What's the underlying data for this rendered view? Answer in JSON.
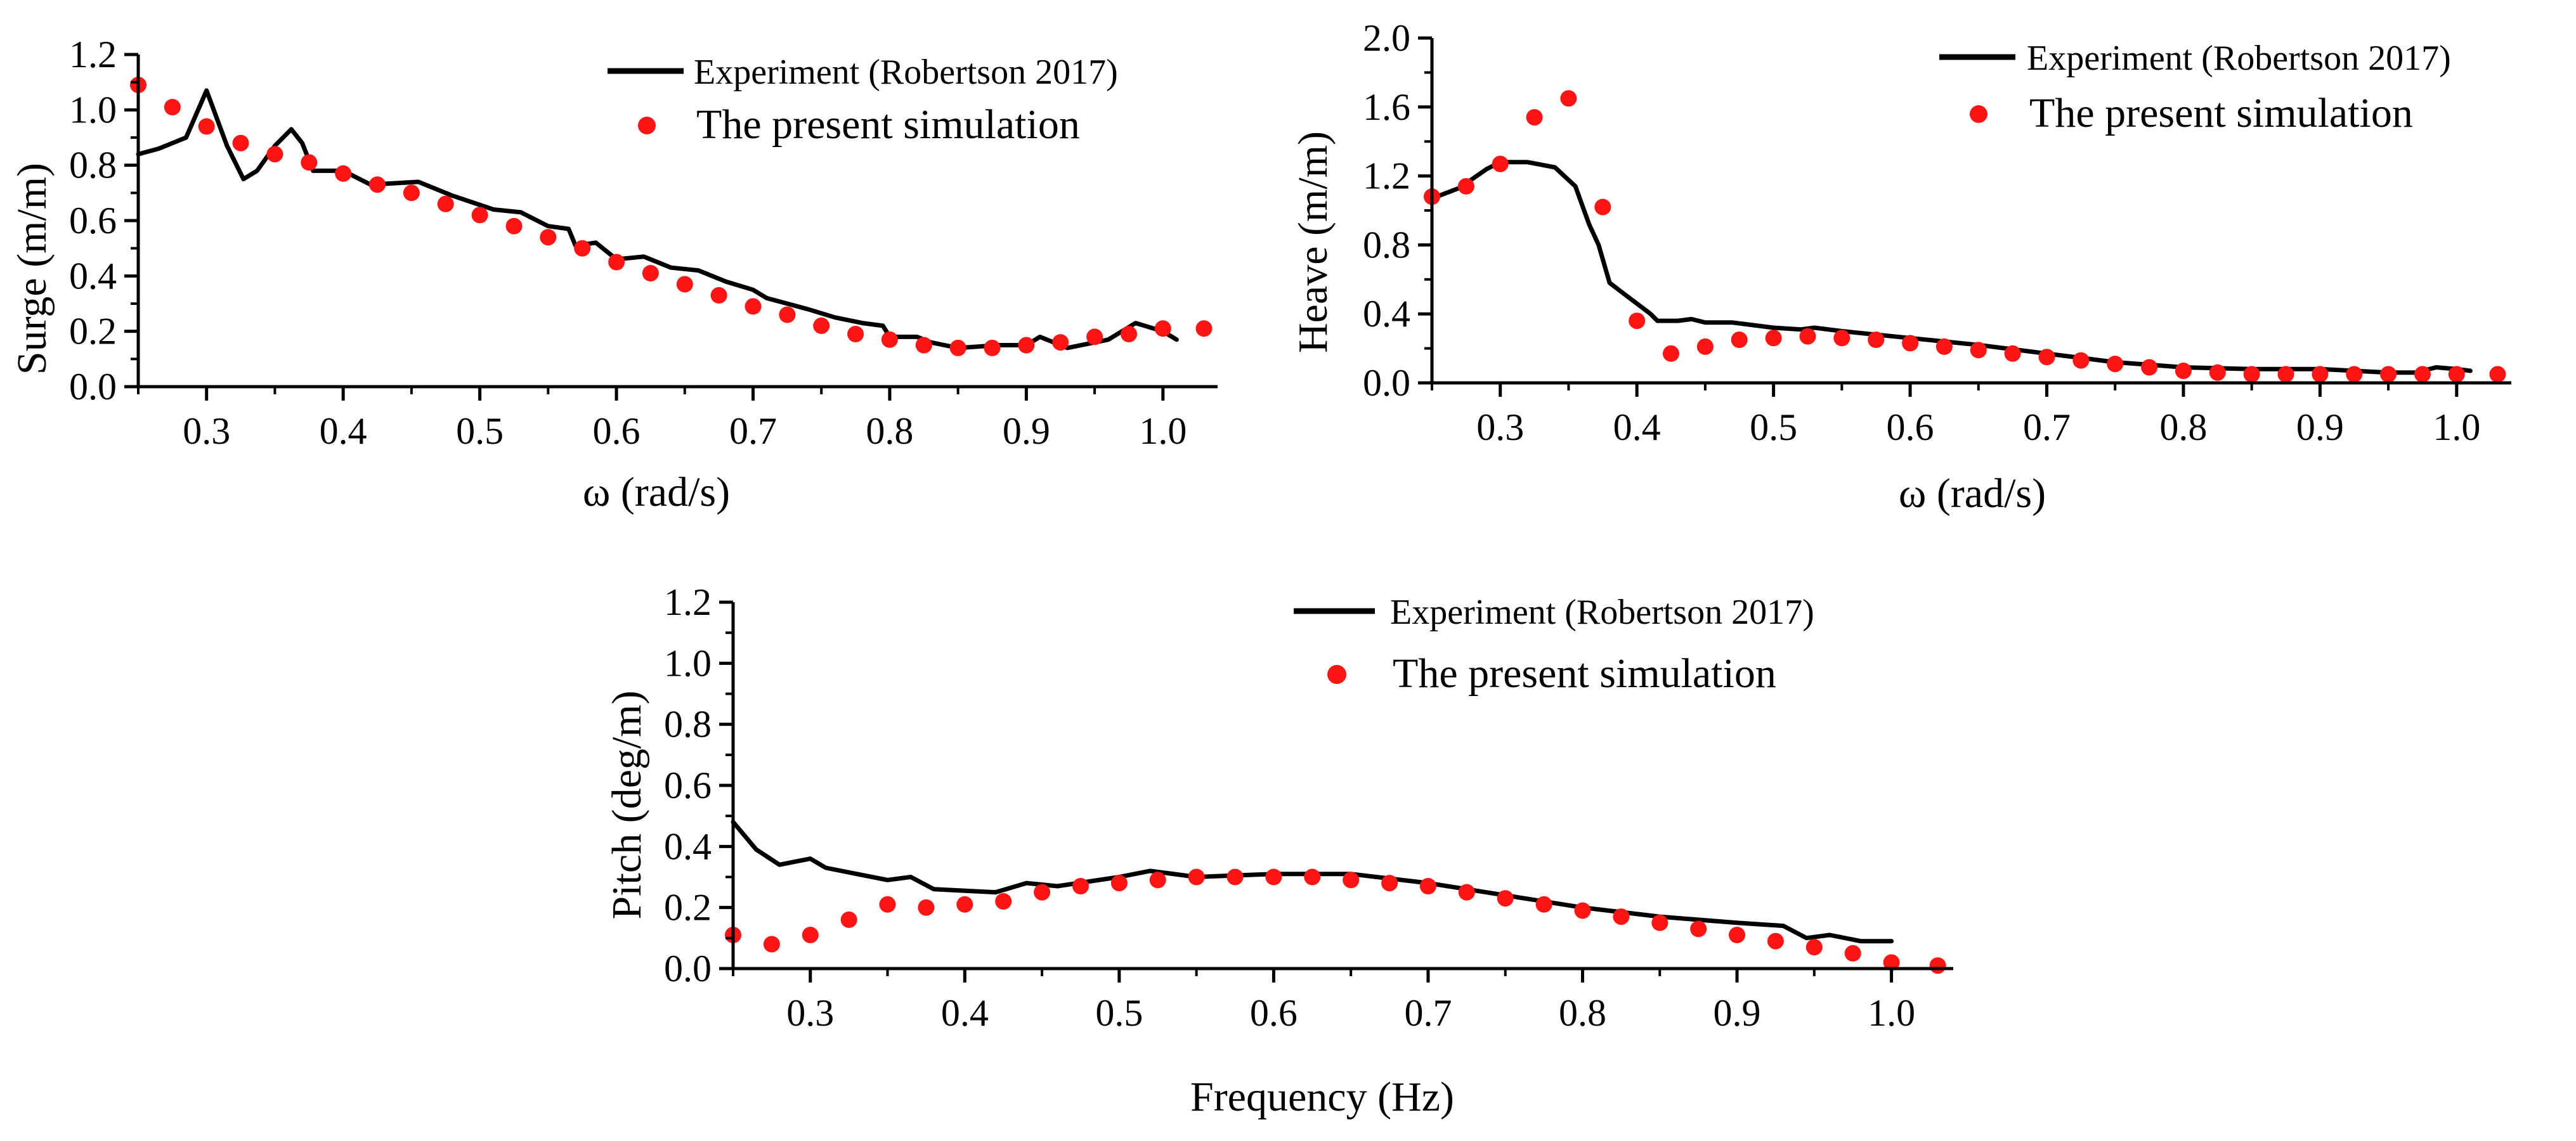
{
  "colors": {
    "experiment": "#000000",
    "simulation": "#ff1414",
    "axis": "#000000"
  },
  "chart_data": [
    {
      "type": "line",
      "panel": "surge",
      "xlabel": "ω (rad/s)",
      "ylabel": "Surge (m/m)",
      "xlim": [
        0.25,
        1.04
      ],
      "ylim": [
        0.0,
        1.2
      ],
      "xticks": [
        0.3,
        0.4,
        0.5,
        0.6,
        0.7,
        0.8,
        0.9,
        1.0
      ],
      "xtick_labels": [
        "0.3",
        "0.4",
        "0.5",
        "0.6",
        "0.7",
        "0.8",
        "0.9",
        "1.0"
      ],
      "yticks": [
        0.0,
        0.2,
        0.4,
        0.6,
        0.8,
        1.0,
        1.2
      ],
      "ytick_labels": [
        "0.0",
        "0.2",
        "0.4",
        "0.6",
        "0.8",
        "1.0",
        "1.2"
      ],
      "legend": [
        {
          "label": "Experiment (Robertson 2017)",
          "kind": "line"
        },
        {
          "label": "The present simulation",
          "kind": "marker"
        }
      ],
      "series": [
        {
          "name": "Experiment (Robertson 2017)",
          "kind": "line",
          "points": [
            [
              0.25,
              0.84
            ],
            [
              0.265,
              0.86
            ],
            [
              0.285,
              0.9
            ],
            [
              0.3,
              1.07
            ],
            [
              0.315,
              0.87
            ],
            [
              0.327,
              0.75
            ],
            [
              0.337,
              0.78
            ],
            [
              0.35,
              0.87
            ],
            [
              0.362,
              0.93
            ],
            [
              0.37,
              0.88
            ],
            [
              0.378,
              0.78
            ],
            [
              0.4,
              0.78
            ],
            [
              0.42,
              0.73
            ],
            [
              0.455,
              0.74
            ],
            [
              0.48,
              0.69
            ],
            [
              0.51,
              0.64
            ],
            [
              0.53,
              0.63
            ],
            [
              0.55,
              0.58
            ],
            [
              0.565,
              0.57
            ],
            [
              0.57,
              0.51
            ],
            [
              0.585,
              0.52
            ],
            [
              0.6,
              0.46
            ],
            [
              0.62,
              0.47
            ],
            [
              0.64,
              0.43
            ],
            [
              0.66,
              0.42
            ],
            [
              0.68,
              0.38
            ],
            [
              0.7,
              0.35
            ],
            [
              0.71,
              0.32
            ],
            [
              0.74,
              0.28
            ],
            [
              0.76,
              0.25
            ],
            [
              0.78,
              0.23
            ],
            [
              0.795,
              0.22
            ],
            [
              0.8,
              0.18
            ],
            [
              0.82,
              0.18
            ],
            [
              0.83,
              0.16
            ],
            [
              0.85,
              0.14
            ],
            [
              0.88,
              0.15
            ],
            [
              0.9,
              0.15
            ],
            [
              0.91,
              0.18
            ],
            [
              0.925,
              0.15
            ],
            [
              0.93,
              0.14
            ],
            [
              0.96,
              0.17
            ],
            [
              0.98,
              0.23
            ],
            [
              1.0,
              0.2
            ],
            [
              1.01,
              0.17
            ]
          ]
        },
        {
          "name": "The present simulation",
          "kind": "scatter",
          "points": [
            [
              0.25,
              1.09
            ],
            [
              0.275,
              1.01
            ],
            [
              0.3,
              0.94
            ],
            [
              0.325,
              0.88
            ],
            [
              0.35,
              0.84
            ],
            [
              0.375,
              0.81
            ],
            [
              0.4,
              0.77
            ],
            [
              0.425,
              0.73
            ],
            [
              0.45,
              0.7
            ],
            [
              0.475,
              0.66
            ],
            [
              0.5,
              0.62
            ],
            [
              0.525,
              0.58
            ],
            [
              0.55,
              0.54
            ],
            [
              0.575,
              0.5
            ],
            [
              0.6,
              0.45
            ],
            [
              0.625,
              0.41
            ],
            [
              0.65,
              0.37
            ],
            [
              0.675,
              0.33
            ],
            [
              0.7,
              0.29
            ],
            [
              0.725,
              0.26
            ],
            [
              0.75,
              0.22
            ],
            [
              0.775,
              0.19
            ],
            [
              0.8,
              0.17
            ],
            [
              0.825,
              0.15
            ],
            [
              0.85,
              0.14
            ],
            [
              0.875,
              0.14
            ],
            [
              0.9,
              0.15
            ],
            [
              0.925,
              0.16
            ],
            [
              0.95,
              0.18
            ],
            [
              0.975,
              0.19
            ],
            [
              1.0,
              0.21
            ],
            [
              1.03,
              0.21
            ]
          ]
        }
      ]
    },
    {
      "type": "line",
      "panel": "heave",
      "xlabel": "ω (rad/s)",
      "ylabel": "Heave (m/m)",
      "xlim": [
        0.25,
        1.04
      ],
      "ylim": [
        0.0,
        2.0
      ],
      "xticks": [
        0.3,
        0.4,
        0.5,
        0.6,
        0.7,
        0.8,
        0.9,
        1.0
      ],
      "xtick_labels": [
        "0.3",
        "0.4",
        "0.5",
        "0.6",
        "0.7",
        "0.8",
        "0.9",
        "1.0"
      ],
      "yticks": [
        0.0,
        0.4,
        0.8,
        1.2,
        1.6,
        2.0
      ],
      "ytick_labels": [
        "0.0",
        "0.4",
        "0.8",
        "1.2",
        "1.6",
        "2.0"
      ],
      "legend": [
        {
          "label": "Experiment (Robertson 2017)",
          "kind": "line"
        },
        {
          "label": "The present simulation",
          "kind": "marker"
        }
      ],
      "series": [
        {
          "name": "Experiment (Robertson 2017)",
          "kind": "line",
          "points": [
            [
              0.25,
              1.07
            ],
            [
              0.27,
              1.13
            ],
            [
              0.29,
              1.24
            ],
            [
              0.3,
              1.28
            ],
            [
              0.32,
              1.28
            ],
            [
              0.34,
              1.25
            ],
            [
              0.355,
              1.14
            ],
            [
              0.365,
              0.92
            ],
            [
              0.372,
              0.8
            ],
            [
              0.38,
              0.58
            ],
            [
              0.39,
              0.52
            ],
            [
              0.4,
              0.46
            ],
            [
              0.41,
              0.4
            ],
            [
              0.415,
              0.36
            ],
            [
              0.43,
              0.36
            ],
            [
              0.44,
              0.37
            ],
            [
              0.45,
              0.35
            ],
            [
              0.47,
              0.35
            ],
            [
              0.48,
              0.34
            ],
            [
              0.5,
              0.32
            ],
            [
              0.52,
              0.31
            ],
            [
              0.53,
              0.32
            ],
            [
              0.55,
              0.3
            ],
            [
              0.6,
              0.26
            ],
            [
              0.65,
              0.22
            ],
            [
              0.7,
              0.17
            ],
            [
              0.75,
              0.12
            ],
            [
              0.8,
              0.09
            ],
            [
              0.85,
              0.08
            ],
            [
              0.9,
              0.08
            ],
            [
              0.95,
              0.06
            ],
            [
              0.97,
              0.06
            ],
            [
              0.985,
              0.09
            ],
            [
              1.0,
              0.08
            ],
            [
              1.01,
              0.07
            ]
          ]
        },
        {
          "name": "The present simulation",
          "kind": "scatter",
          "points": [
            [
              0.25,
              1.08
            ],
            [
              0.275,
              1.14
            ],
            [
              0.3,
              1.27
            ],
            [
              0.325,
              1.54
            ],
            [
              0.35,
              1.65
            ],
            [
              0.375,
              1.02
            ],
            [
              0.4,
              0.36
            ],
            [
              0.425,
              0.17
            ],
            [
              0.45,
              0.21
            ],
            [
              0.475,
              0.25
            ],
            [
              0.5,
              0.26
            ],
            [
              0.525,
              0.27
            ],
            [
              0.55,
              0.26
            ],
            [
              0.575,
              0.25
            ],
            [
              0.6,
              0.23
            ],
            [
              0.625,
              0.21
            ],
            [
              0.65,
              0.19
            ],
            [
              0.675,
              0.17
            ],
            [
              0.7,
              0.15
            ],
            [
              0.725,
              0.13
            ],
            [
              0.75,
              0.11
            ],
            [
              0.775,
              0.09
            ],
            [
              0.8,
              0.07
            ],
            [
              0.825,
              0.06
            ],
            [
              0.85,
              0.05
            ],
            [
              0.875,
              0.05
            ],
            [
              0.9,
              0.05
            ],
            [
              0.925,
              0.05
            ],
            [
              0.95,
              0.05
            ],
            [
              0.975,
              0.05
            ],
            [
              1.0,
              0.05
            ],
            [
              1.03,
              0.05
            ]
          ]
        }
      ]
    },
    {
      "type": "line",
      "panel": "pitch",
      "xlabel": "Frequency (Hz)",
      "ylabel": "Pitch (deg/m)",
      "xlim": [
        0.25,
        1.04
      ],
      "ylim": [
        0.0,
        1.2
      ],
      "xticks": [
        0.3,
        0.4,
        0.5,
        0.6,
        0.7,
        0.8,
        0.9,
        1.0
      ],
      "xtick_labels": [
        "0.3",
        "0.4",
        "0.5",
        "0.6",
        "0.7",
        "0.8",
        "0.9",
        "1.0"
      ],
      "yticks": [
        0.0,
        0.2,
        0.4,
        0.6,
        0.8,
        1.0,
        1.2
      ],
      "ytick_labels": [
        "0.0",
        "0.2",
        "0.4",
        "0.6",
        "0.8",
        "1.0",
        "1.2"
      ],
      "legend": [
        {
          "label": "Experiment (Robertson 2017)",
          "kind": "line"
        },
        {
          "label": "The present simulation",
          "kind": "marker"
        }
      ],
      "series": [
        {
          "name": "Experiment (Robertson 2017)",
          "kind": "line",
          "points": [
            [
              0.25,
              0.48
            ],
            [
              0.265,
              0.39
            ],
            [
              0.28,
              0.34
            ],
            [
              0.3,
              0.36
            ],
            [
              0.31,
              0.33
            ],
            [
              0.33,
              0.31
            ],
            [
              0.35,
              0.29
            ],
            [
              0.365,
              0.3
            ],
            [
              0.38,
              0.26
            ],
            [
              0.42,
              0.25
            ],
            [
              0.44,
              0.28
            ],
            [
              0.46,
              0.27
            ],
            [
              0.5,
              0.3
            ],
            [
              0.52,
              0.32
            ],
            [
              0.55,
              0.3
            ],
            [
              0.6,
              0.31
            ],
            [
              0.65,
              0.31
            ],
            [
              0.7,
              0.28
            ],
            [
              0.75,
              0.24
            ],
            [
              0.8,
              0.2
            ],
            [
              0.85,
              0.17
            ],
            [
              0.9,
              0.15
            ],
            [
              0.93,
              0.14
            ],
            [
              0.945,
              0.1
            ],
            [
              0.96,
              0.11
            ],
            [
              0.98,
              0.09
            ],
            [
              1.0,
              0.09
            ]
          ]
        },
        {
          "name": "The present simulation",
          "kind": "scatter",
          "points": [
            [
              0.25,
              0.11
            ],
            [
              0.275,
              0.08
            ],
            [
              0.3,
              0.11
            ],
            [
              0.325,
              0.16
            ],
            [
              0.35,
              0.21
            ],
            [
              0.375,
              0.2
            ],
            [
              0.4,
              0.21
            ],
            [
              0.425,
              0.22
            ],
            [
              0.45,
              0.25
            ],
            [
              0.475,
              0.27
            ],
            [
              0.5,
              0.28
            ],
            [
              0.525,
              0.29
            ],
            [
              0.55,
              0.3
            ],
            [
              0.575,
              0.3
            ],
            [
              0.6,
              0.3
            ],
            [
              0.625,
              0.3
            ],
            [
              0.65,
              0.29
            ],
            [
              0.675,
              0.28
            ],
            [
              0.7,
              0.27
            ],
            [
              0.725,
              0.25
            ],
            [
              0.75,
              0.23
            ],
            [
              0.775,
              0.21
            ],
            [
              0.8,
              0.19
            ],
            [
              0.825,
              0.17
            ],
            [
              0.85,
              0.15
            ],
            [
              0.875,
              0.13
            ],
            [
              0.9,
              0.11
            ],
            [
              0.925,
              0.09
            ],
            [
              0.95,
              0.07
            ],
            [
              0.975,
              0.05
            ],
            [
              1.0,
              0.02
            ],
            [
              1.03,
              0.01
            ]
          ]
        }
      ]
    }
  ]
}
